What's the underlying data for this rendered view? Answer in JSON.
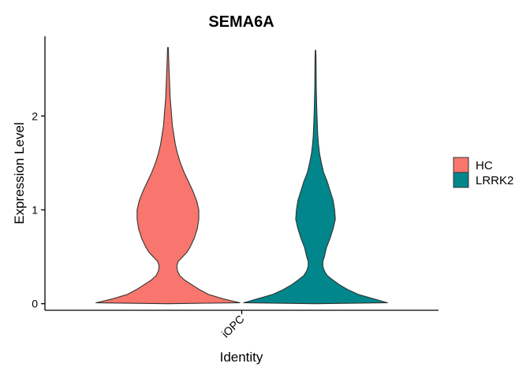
{
  "chart_data": {
    "type": "violin",
    "title": "SEMA6A",
    "xlabel": "Identity",
    "ylabel": "Expression Level",
    "categories": [
      "iOPC"
    ],
    "y_ticks": [
      0,
      1,
      2
    ],
    "ylim": [
      -0.07,
      2.85
    ],
    "grid": false,
    "legend": {
      "placement": "right",
      "title": ""
    },
    "series": [
      {
        "name": "HC",
        "color": "#F8766D",
        "category": "iOPC",
        "y_max": 2.73,
        "profile": [
          {
            "y": 0.0,
            "density": 0.0
          },
          {
            "y": 0.01,
            "density": 0.98
          },
          {
            "y": 0.05,
            "density": 0.76
          },
          {
            "y": 0.1,
            "density": 0.55
          },
          {
            "y": 0.15,
            "density": 0.43
          },
          {
            "y": 0.2,
            "density": 0.33
          },
          {
            "y": 0.25,
            "density": 0.23
          },
          {
            "y": 0.3,
            "density": 0.16
          },
          {
            "y": 0.35,
            "density": 0.13
          },
          {
            "y": 0.4,
            "density": 0.12
          },
          {
            "y": 0.45,
            "density": 0.14
          },
          {
            "y": 0.5,
            "density": 0.2
          },
          {
            "y": 0.55,
            "density": 0.26
          },
          {
            "y": 0.6,
            "density": 0.3
          },
          {
            "y": 0.7,
            "density": 0.36
          },
          {
            "y": 0.8,
            "density": 0.4
          },
          {
            "y": 0.9,
            "density": 0.42
          },
          {
            "y": 1.0,
            "density": 0.42
          },
          {
            "y": 1.1,
            "density": 0.39
          },
          {
            "y": 1.2,
            "density": 0.34
          },
          {
            "y": 1.3,
            "density": 0.28
          },
          {
            "y": 1.4,
            "density": 0.22
          },
          {
            "y": 1.5,
            "density": 0.17
          },
          {
            "y": 1.6,
            "density": 0.13
          },
          {
            "y": 1.7,
            "density": 0.1
          },
          {
            "y": 1.8,
            "density": 0.08
          },
          {
            "y": 1.9,
            "density": 0.06
          },
          {
            "y": 2.0,
            "density": 0.05
          },
          {
            "y": 2.1,
            "density": 0.04
          },
          {
            "y": 2.2,
            "density": 0.03
          },
          {
            "y": 2.3,
            "density": 0.025
          },
          {
            "y": 2.4,
            "density": 0.02
          },
          {
            "y": 2.5,
            "density": 0.015
          },
          {
            "y": 2.6,
            "density": 0.01
          },
          {
            "y": 2.73,
            "density": 0.005
          }
        ]
      },
      {
        "name": "LRRK2",
        "color": "#00868B",
        "category": "iOPC",
        "y_max": 2.7,
        "profile": [
          {
            "y": 0.0,
            "density": 0.0
          },
          {
            "y": 0.01,
            "density": 0.98
          },
          {
            "y": 0.05,
            "density": 0.8
          },
          {
            "y": 0.1,
            "density": 0.58
          },
          {
            "y": 0.15,
            "density": 0.44
          },
          {
            "y": 0.2,
            "density": 0.33
          },
          {
            "y": 0.25,
            "density": 0.24
          },
          {
            "y": 0.3,
            "density": 0.16
          },
          {
            "y": 0.35,
            "density": 0.12
          },
          {
            "y": 0.4,
            "density": 0.1
          },
          {
            "y": 0.45,
            "density": 0.1
          },
          {
            "y": 0.5,
            "density": 0.12
          },
          {
            "y": 0.6,
            "density": 0.15
          },
          {
            "y": 0.7,
            "density": 0.2
          },
          {
            "y": 0.8,
            "density": 0.24
          },
          {
            "y": 0.9,
            "density": 0.27
          },
          {
            "y": 1.0,
            "density": 0.26
          },
          {
            "y": 1.1,
            "density": 0.24
          },
          {
            "y": 1.2,
            "density": 0.2
          },
          {
            "y": 1.3,
            "density": 0.16
          },
          {
            "y": 1.4,
            "density": 0.11
          },
          {
            "y": 1.5,
            "density": 0.08
          },
          {
            "y": 1.6,
            "density": 0.055
          },
          {
            "y": 1.7,
            "density": 0.04
          },
          {
            "y": 1.8,
            "density": 0.03
          },
          {
            "y": 1.9,
            "density": 0.025
          },
          {
            "y": 2.0,
            "density": 0.02
          },
          {
            "y": 2.1,
            "density": 0.016
          },
          {
            "y": 2.2,
            "density": 0.013
          },
          {
            "y": 2.3,
            "density": 0.01
          },
          {
            "y": 2.4,
            "density": 0.009
          },
          {
            "y": 2.5,
            "density": 0.008
          },
          {
            "y": 2.6,
            "density": 0.007
          },
          {
            "y": 2.7,
            "density": 0.004
          }
        ]
      }
    ]
  }
}
